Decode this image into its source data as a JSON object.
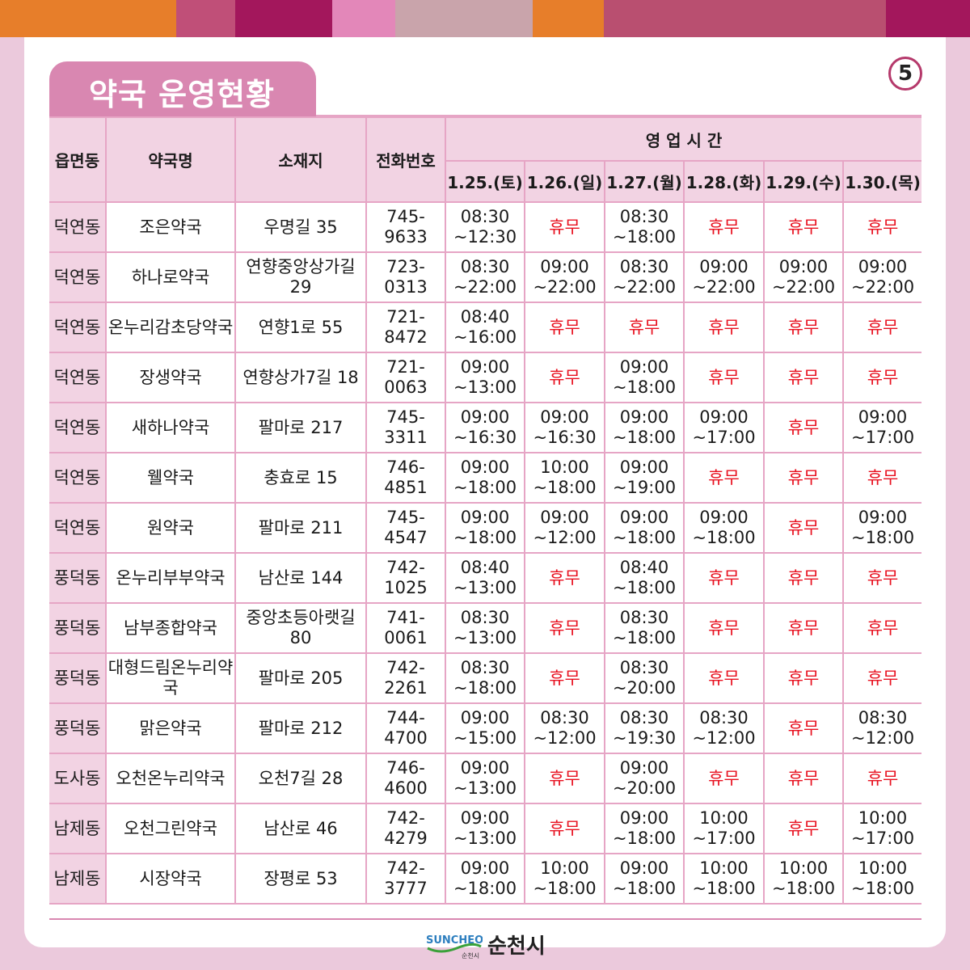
{
  "title": "약국 운영현황",
  "page_number": "5",
  "top_bar_colors": [
    "#e77e2a",
    "#c04f78",
    "#a3175c",
    "#e387b9",
    "#c9a4ab",
    "#e77e2a",
    "#b94f70",
    "#a3175c"
  ],
  "headers": {
    "area": "읍면동",
    "name": "약국명",
    "address": "소재지",
    "phone": "전화번호",
    "hours": "영 업 시 간",
    "dates": [
      "1.25.(토)",
      "1.26.(일)",
      "1.27.(월)",
      "1.28.(화)",
      "1.29.(수)",
      "1.30.(목)"
    ]
  },
  "rows": [
    {
      "area": "덕연동",
      "name": "조은약국",
      "address": "우명길 35",
      "phone": "745-9633",
      "hours": [
        [
          "08:30",
          "~12:30"
        ],
        [
          "휴무"
        ],
        [
          "08:30",
          "~18:00"
        ],
        [
          "휴무"
        ],
        [
          "휴무"
        ],
        [
          "휴무"
        ]
      ]
    },
    {
      "area": "덕연동",
      "name": "하나로약국",
      "address": "연향중앙상가길 29",
      "phone": "723-0313",
      "hours": [
        [
          "08:30",
          "~22:00"
        ],
        [
          "09:00",
          "~22:00"
        ],
        [
          "08:30",
          "~22:00"
        ],
        [
          "09:00",
          "~22:00"
        ],
        [
          "09:00",
          "~22:00"
        ],
        [
          "09:00",
          "~22:00"
        ]
      ]
    },
    {
      "area": "덕연동",
      "name": "온누리감초당약국",
      "address": "연향1로 55",
      "phone": "721-8472",
      "hours": [
        [
          "08:40",
          "~16:00"
        ],
        [
          "휴무"
        ],
        [
          "휴무"
        ],
        [
          "휴무"
        ],
        [
          "휴무"
        ],
        [
          "휴무"
        ]
      ]
    },
    {
      "area": "덕연동",
      "name": "장생약국",
      "address": "연향상가7길 18",
      "phone": "721-0063",
      "hours": [
        [
          "09:00",
          "~13:00"
        ],
        [
          "휴무"
        ],
        [
          "09:00",
          "~18:00"
        ],
        [
          "휴무"
        ],
        [
          "휴무"
        ],
        [
          "휴무"
        ]
      ]
    },
    {
      "area": "덕연동",
      "name": "새하나약국",
      "address": "팔마로 217",
      "phone": "745-3311",
      "hours": [
        [
          "09:00",
          "~16:30"
        ],
        [
          "09:00",
          "~16:30"
        ],
        [
          "09:00",
          "~18:00"
        ],
        [
          "09:00",
          "~17:00"
        ],
        [
          "휴무"
        ],
        [
          "09:00",
          "~17:00"
        ]
      ]
    },
    {
      "area": "덕연동",
      "name": "웰약국",
      "address": "충효로 15",
      "phone": "746-4851",
      "hours": [
        [
          "09:00",
          "~18:00"
        ],
        [
          "10:00",
          "~18:00"
        ],
        [
          "09:00",
          "~19:00"
        ],
        [
          "휴무"
        ],
        [
          "휴무"
        ],
        [
          "휴무"
        ]
      ]
    },
    {
      "area": "덕연동",
      "name": "원약국",
      "address": "팔마로 211",
      "phone": "745-4547",
      "hours": [
        [
          "09:00",
          "~18:00"
        ],
        [
          "09:00",
          "~12:00"
        ],
        [
          "09:00",
          "~18:00"
        ],
        [
          "09:00",
          "~18:00"
        ],
        [
          "휴무"
        ],
        [
          "09:00",
          "~18:00"
        ]
      ]
    },
    {
      "area": "풍덕동",
      "name": "온누리부부약국",
      "address": "남산로 144",
      "phone": "742-1025",
      "hours": [
        [
          "08:40",
          "~13:00"
        ],
        [
          "휴무"
        ],
        [
          "08:40",
          "~18:00"
        ],
        [
          "휴무"
        ],
        [
          "휴무"
        ],
        [
          "휴무"
        ]
      ]
    },
    {
      "area": "풍덕동",
      "name": "남부종합약국",
      "address": "중앙초등아랫길 80",
      "phone": "741-0061",
      "hours": [
        [
          "08:30",
          "~13:00"
        ],
        [
          "휴무"
        ],
        [
          "08:30",
          "~18:00"
        ],
        [
          "휴무"
        ],
        [
          "휴무"
        ],
        [
          "휴무"
        ]
      ]
    },
    {
      "area": "풍덕동",
      "name": "대형드림온누리약국",
      "address": "팔마로 205",
      "phone": "742-2261",
      "hours": [
        [
          "08:30",
          "~18:00"
        ],
        [
          "휴무"
        ],
        [
          "08:30",
          "~20:00"
        ],
        [
          "휴무"
        ],
        [
          "휴무"
        ],
        [
          "휴무"
        ]
      ]
    },
    {
      "area": "풍덕동",
      "name": "맑은약국",
      "address": "팔마로 212",
      "phone": "744-4700",
      "hours": [
        [
          "09:00",
          "~15:00"
        ],
        [
          "08:30",
          "~12:00"
        ],
        [
          "08:30",
          "~19:30"
        ],
        [
          "08:30",
          "~12:00"
        ],
        [
          "휴무"
        ],
        [
          "08:30",
          "~12:00"
        ]
      ]
    },
    {
      "area": "도사동",
      "name": "오천온누리약국",
      "address": "오천7길 28",
      "phone": "746-4600",
      "hours": [
        [
          "09:00",
          "~13:00"
        ],
        [
          "휴무"
        ],
        [
          "09:00",
          "~20:00"
        ],
        [
          "휴무"
        ],
        [
          "휴무"
        ],
        [
          "휴무"
        ]
      ]
    },
    {
      "area": "남제동",
      "name": "오천그린약국",
      "address": "남산로 46",
      "phone": "742-4279",
      "hours": [
        [
          "09:00",
          "~13:00"
        ],
        [
          "휴무"
        ],
        [
          "09:00",
          "~18:00"
        ],
        [
          "10:00",
          "~17:00"
        ],
        [
          "휴무"
        ],
        [
          "10:00",
          "~17:00"
        ]
      ]
    },
    {
      "area": "남제동",
      "name": "시장약국",
      "address": "장평로 53",
      "phone": "742-3777",
      "hours": [
        [
          "09:00",
          "~18:00"
        ],
        [
          "10:00",
          "~18:00"
        ],
        [
          "09:00",
          "~18:00"
        ],
        [
          "10:00",
          "~18:00"
        ],
        [
          "10:00",
          "~18:00"
        ],
        [
          "10:00",
          "~18:00"
        ]
      ]
    }
  ],
  "footer": {
    "logo_text": "순천시",
    "logo_mark_text": "SUNCHEON",
    "logo_mark_sub": "순천시"
  }
}
